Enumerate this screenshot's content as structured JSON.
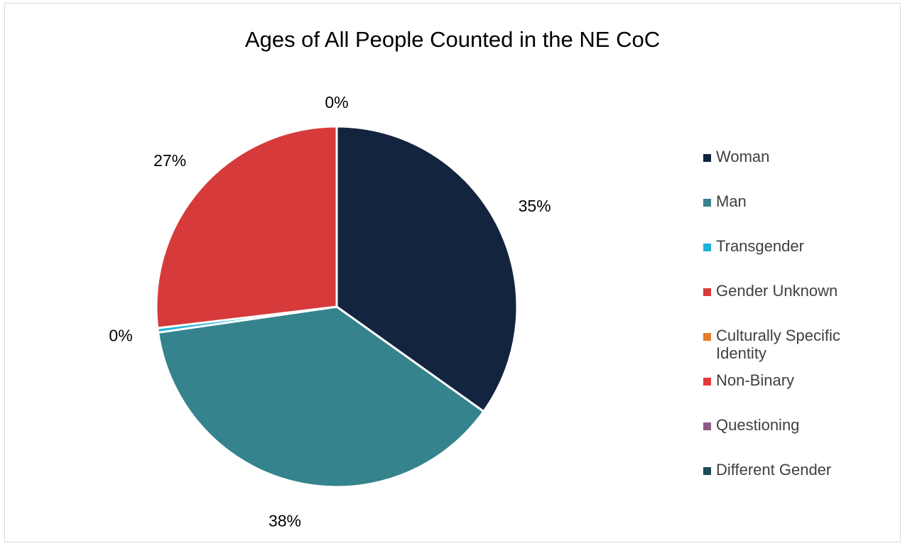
{
  "chart_data": {
    "type": "pie",
    "title": "Ages of All People Counted in the NE CoC",
    "legend_position": "right",
    "slices": [
      {
        "name": "Woman",
        "value": 35,
        "label": "35%",
        "color": "#13243f"
      },
      {
        "name": "Man",
        "value": 38,
        "label": "38%",
        "color": "#35838c"
      },
      {
        "name": "Transgender",
        "value": 0.4,
        "label": "0%",
        "color": "#1fb3dc"
      },
      {
        "name": "Gender Unknown",
        "value": 27,
        "label": "27%",
        "color": "#d63a3b"
      },
      {
        "name": "Culturally Specific Identity",
        "value": 0,
        "label": "",
        "color": "#e57c2c"
      },
      {
        "name": "Non-Binary",
        "value": 0,
        "label": "",
        "color": "#e23a3a"
      },
      {
        "name": "Questioning",
        "value": 0,
        "label": "",
        "color": "#8e5b84"
      },
      {
        "name": "Different Gender",
        "value": 0,
        "label": "0%",
        "color": "#1f4a56"
      }
    ]
  }
}
